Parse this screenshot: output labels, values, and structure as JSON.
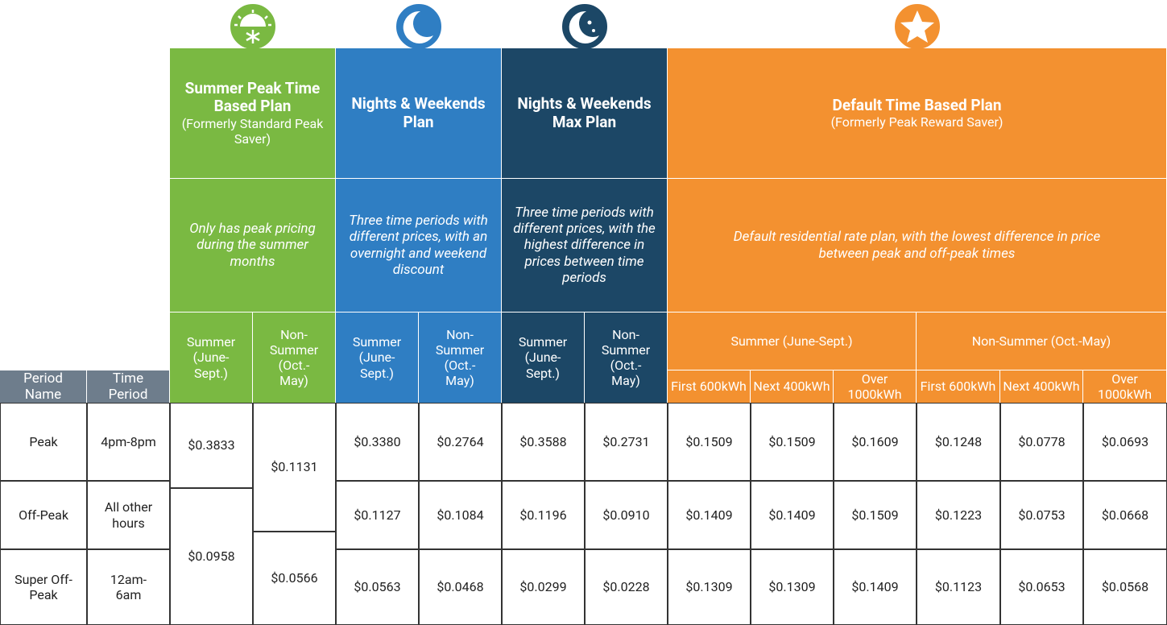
{
  "left_headers": [
    "Period Name",
    "Time Period"
  ],
  "plans": [
    {
      "name": "Summer Peak Time Based Plan",
      "subtitle": "(Formerly Standard Peak Saver)",
      "description": "Only has peak pricing during the summer months",
      "seasons": [
        "Summer (June-Sept.)",
        "Non-Summer (Oct.-May)"
      ]
    },
    {
      "name": "Nights & Weekends Plan",
      "description": "Three time periods with different prices, with an overnight and weekend discount",
      "seasons": [
        "Summer (June-Sept.)",
        "Non-Summer (Oct.-May)"
      ]
    },
    {
      "name": "Nights & Weekends Max Plan",
      "description": "Three time periods with different prices, with the highest difference in prices between time periods",
      "seasons": [
        "Summer (June-Sept.)",
        "Non-Summer (Oct.-May)"
      ]
    },
    {
      "name": "Default Time Based Plan",
      "subtitle": "(Formerly Peak Reward Saver)",
      "description": "Default residential rate plan, with the lowest difference in price between peak and off-peak times",
      "seasons": [
        "Summer (June-Sept.)",
        "Non-Summer (Oct.-May)"
      ],
      "tiers": [
        "First 600kWh",
        "Next 400kWh",
        "Over 1000kWh"
      ]
    }
  ],
  "summer_peak_prices": {
    "summer": [
      "$0.3833",
      "$0.0958"
    ],
    "non_summer": [
      "$0.1131",
      "$0.0566"
    ]
  },
  "rows": [
    {
      "period": "Peak",
      "time": "4pm-8pm",
      "prices": [
        "$0.3380",
        "$0.2764",
        "$0.3588",
        "$0.2731",
        "$0.1509",
        "$0.1509",
        "$0.1609",
        "$0.1248",
        "$0.0778",
        "$0.0693"
      ]
    },
    {
      "period": "Off-Peak",
      "time": "All other hours",
      "prices": [
        "$0.1127",
        "$0.1084",
        "$0.1196",
        "$0.0910",
        "$0.1409",
        "$0.1409",
        "$0.1509",
        "$0.1223",
        "$0.0753",
        "$0.0668"
      ]
    },
    {
      "period": "Super Off-Peak",
      "time": "12am-6am",
      "prices": [
        "$0.0563",
        "$0.0468",
        "$0.0299",
        "$0.0228",
        "$0.1309",
        "$0.1309",
        "$0.1409",
        "$0.1123",
        "$0.0653",
        "$0.0568"
      ]
    }
  ]
}
